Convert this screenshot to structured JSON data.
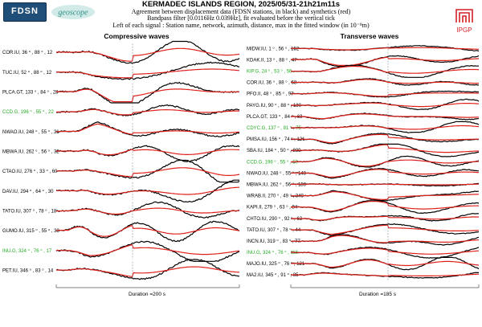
{
  "header": {
    "title": "KERMADEC ISLANDS REGION, 2025/05/31-21h21m11s",
    "sub1": "Agreement between displacement data (FDSN stations, in black) and synthetics (red)",
    "sub2": "Bandpass filter [0.0116Hz 0.039Hz], fit evaluated before the vertical tick",
    "sub3": "Left of each signal : Station name, network, azimuth, distance, max in the fitted window (in 10⁻⁸m)"
  },
  "logos": {
    "fdsn": "FDSN",
    "geoscope": "geoscope",
    "ipgp": "IPGP"
  },
  "colors": {
    "data": "#000000",
    "synthetic": "#e0201b",
    "highlight_label": "#22aa22",
    "label": "#000000",
    "axis": "#555555",
    "tick": "#888888"
  },
  "chart_data": [
    {
      "type": "line",
      "title": "Compressive waves",
      "duration_label": "Duration =200 s",
      "series": [
        {
          "station": "COR",
          "network": "IU",
          "azimuth": 36,
          "distance": 88,
          "max": 12,
          "highlight": false
        },
        {
          "station": "TUC",
          "network": "IU",
          "azimuth": 52,
          "distance": 88,
          "max": 12,
          "highlight": false
        },
        {
          "station": "PLCA",
          "network": "GT",
          "azimuth": 133,
          "distance": 84,
          "max": 28,
          "highlight": false
        },
        {
          "station": "CCD",
          "network": "G",
          "azimuth": 196,
          "distance": 55,
          "max": 22,
          "highlight": true
        },
        {
          "station": "NWAO",
          "network": "IU",
          "azimuth": 248,
          "distance": 55,
          "max": 31,
          "highlight": false
        },
        {
          "station": "MBWA",
          "network": "IU",
          "azimuth": 262,
          "distance": 56,
          "max": 32,
          "highlight": false
        },
        {
          "station": "CTAO",
          "network": "IU",
          "azimuth": 276,
          "distance": 33,
          "max": 60,
          "highlight": false
        },
        {
          "station": "DAV",
          "network": "IU",
          "azimuth": 294,
          "distance": 64,
          "max": 30,
          "highlight": false
        },
        {
          "station": "TATO",
          "network": "IU",
          "azimuth": 307,
          "distance": 78,
          "max": 18,
          "highlight": false
        },
        {
          "station": "GUMO",
          "network": "IU",
          "azimuth": 315,
          "distance": 55,
          "max": 33,
          "highlight": false
        },
        {
          "station": "INU",
          "network": "G",
          "azimuth": 324,
          "distance": 76,
          "max": 17,
          "highlight": true
        },
        {
          "station": "PET",
          "network": "IU",
          "azimuth": 346,
          "distance": 83,
          "max": 14,
          "highlight": false
        }
      ]
    },
    {
      "type": "line",
      "title": "Transverse waves",
      "duration_label": "Duration =185 s",
      "series": [
        {
          "station": "MIDW",
          "network": "IU",
          "azimuth": 1,
          "distance": 56,
          "max": 152,
          "highlight": false
        },
        {
          "station": "KDAK",
          "network": "II",
          "azimuth": 13,
          "distance": 88,
          "max": 47,
          "highlight": false
        },
        {
          "station": "KIP",
          "network": "G",
          "azimuth": 24,
          "distance": 53,
          "max": 56,
          "highlight": true
        },
        {
          "station": "COR",
          "network": "IU",
          "azimuth": 36,
          "distance": 88,
          "max": 68,
          "highlight": false
        },
        {
          "station": "PFO",
          "network": "II",
          "azimuth": 48,
          "distance": 85,
          "max": 97,
          "highlight": false
        },
        {
          "station": "PAYG",
          "network": "IU",
          "azimuth": 90,
          "distance": 88,
          "max": 130,
          "highlight": false
        },
        {
          "station": "PLCA",
          "network": "GT",
          "azimuth": 133,
          "distance": 84,
          "max": 63,
          "highlight": false
        },
        {
          "station": "CDYC",
          "network": "G",
          "azimuth": 137,
          "distance": 81,
          "max": 75,
          "highlight": true
        },
        {
          "station": "PMSA",
          "network": "IU",
          "azimuth": 156,
          "distance": 74,
          "max": 121,
          "highlight": false
        },
        {
          "station": "SBA",
          "network": "IU",
          "azimuth": 184,
          "distance": 50,
          "max": 230,
          "highlight": false
        },
        {
          "station": "CCD",
          "network": "G",
          "azimuth": 196,
          "distance": 55,
          "max": 60,
          "highlight": true
        },
        {
          "station": "NWAO",
          "network": "IU",
          "azimuth": 248,
          "distance": 55,
          "max": 148,
          "highlight": false
        },
        {
          "station": "MBWA",
          "network": "IU",
          "azimuth": 262,
          "distance": 56,
          "max": 158,
          "highlight": false
        },
        {
          "station": "WRAB",
          "network": "II",
          "azimuth": 270,
          "distance": 49,
          "max": 349,
          "highlight": false
        },
        {
          "station": "KAPI",
          "network": "II",
          "azimuth": 279,
          "distance": 63,
          "max": 84,
          "highlight": false
        },
        {
          "station": "CHTO",
          "network": "IU",
          "azimuth": 290,
          "distance": 92,
          "max": 63,
          "highlight": false
        },
        {
          "station": "TATO",
          "network": "IU",
          "azimuth": 307,
          "distance": 78,
          "max": 44,
          "highlight": false
        },
        {
          "station": "INCN",
          "network": "IU",
          "azimuth": 319,
          "distance": 83,
          "max": 77,
          "highlight": false
        },
        {
          "station": "INU",
          "network": "G",
          "azimuth": 324,
          "distance": 76,
          "max": 116,
          "highlight": true
        },
        {
          "station": "MAJO",
          "network": "IU",
          "azimuth": 325,
          "distance": 76,
          "max": 121,
          "highlight": false
        },
        {
          "station": "MA2",
          "network": "IU",
          "azimuth": 345,
          "distance": 91,
          "max": 85,
          "highlight": false
        }
      ]
    }
  ]
}
